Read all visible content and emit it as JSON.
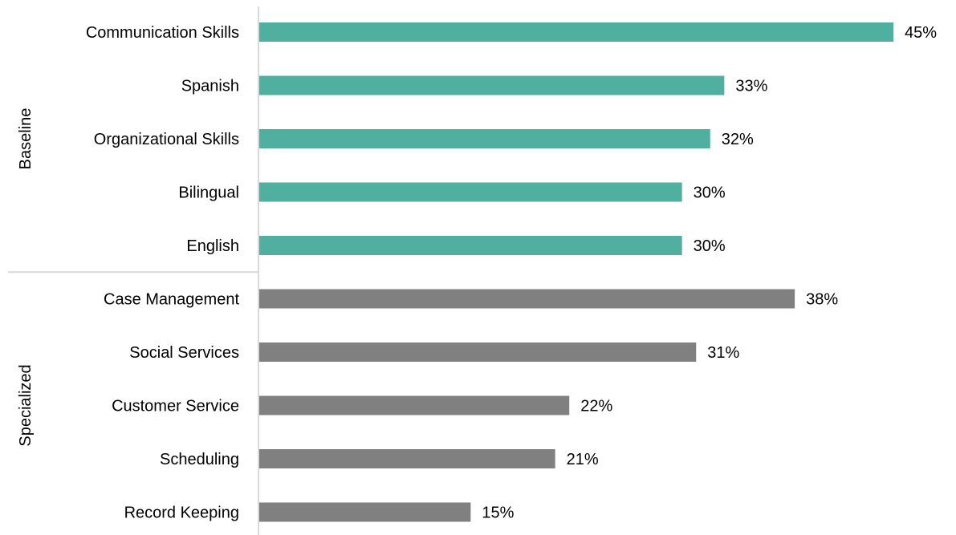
{
  "chart_data": {
    "type": "bar",
    "orientation": "horizontal",
    "groups": [
      {
        "name": "Baseline",
        "color": "#4FB0A0",
        "categories": [
          "Communication Skills",
          "Spanish",
          "Organizational Skills",
          "Bilingual",
          "English"
        ],
        "values": [
          45,
          33,
          32,
          30,
          30
        ],
        "labels": [
          "45%",
          "33%",
          "32%",
          "30%",
          "30%"
        ]
      },
      {
        "name": "Specialized",
        "color": "#808080",
        "categories": [
          "Case Management",
          "Social Services",
          "Customer Service",
          "Scheduling",
          "Record Keeping"
        ],
        "values": [
          38,
          31,
          22,
          21,
          15
        ],
        "labels": [
          "38%",
          "31%",
          "22%",
          "21%",
          "15%"
        ]
      }
    ],
    "value_unit": "%",
    "xlim": [
      0,
      45
    ],
    "grid": false,
    "legend": "none",
    "title": "",
    "xlabel": "",
    "ylabel": ""
  },
  "colors": {
    "axis": "#D9D9D9",
    "text": "#000000"
  }
}
